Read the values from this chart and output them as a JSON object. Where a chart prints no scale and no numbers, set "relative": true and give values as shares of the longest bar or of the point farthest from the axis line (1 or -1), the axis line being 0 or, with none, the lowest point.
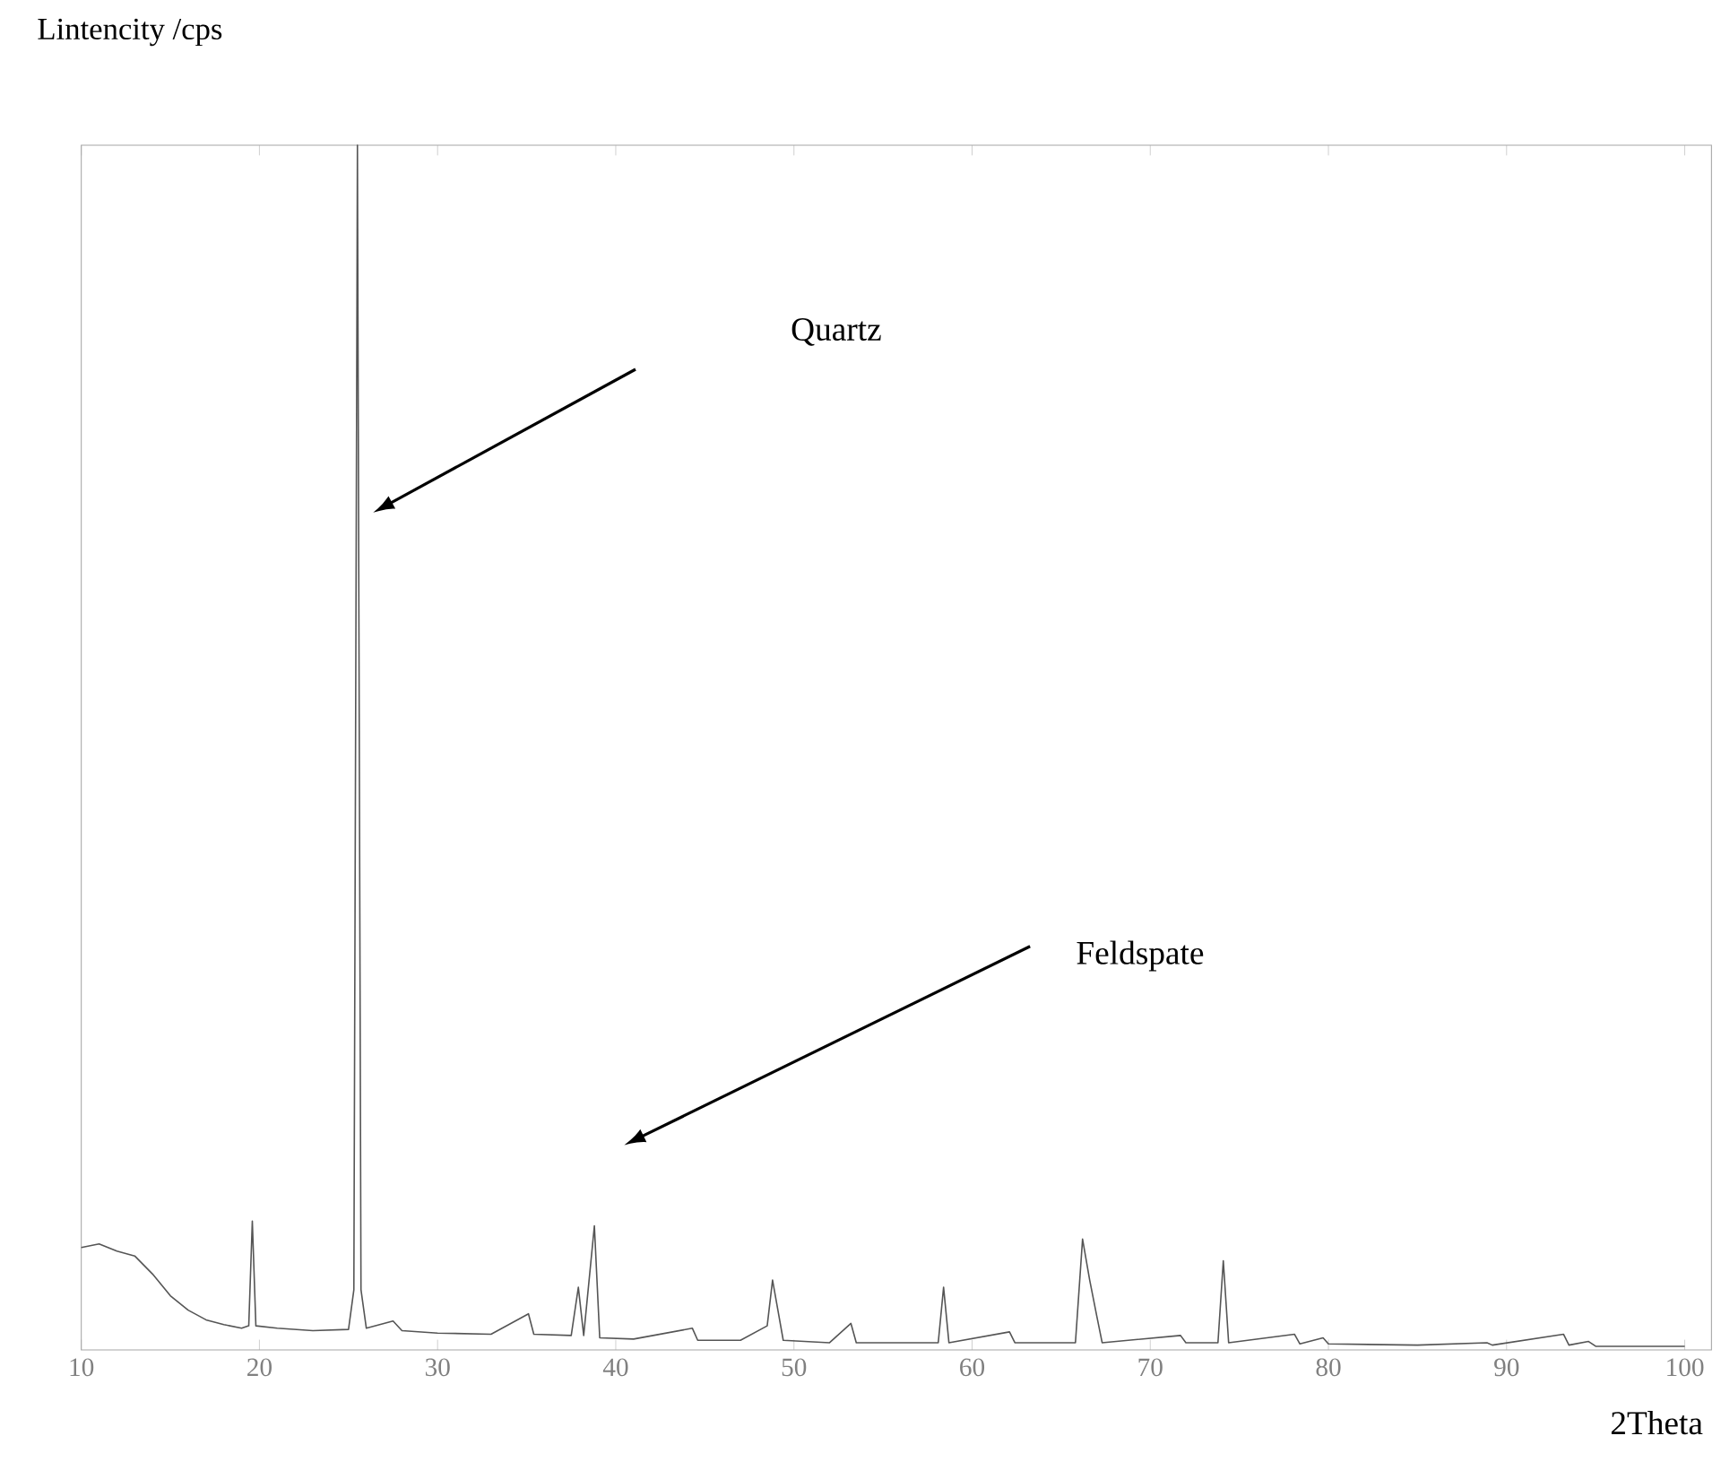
{
  "chart_data": {
    "type": "line",
    "xlabel": "2Theta",
    "ylabel": "Lintencity /cps",
    "relative": true,
    "tick_labels": "x",
    "marker": "none",
    "xlim": [
      10,
      101.5
    ],
    "xticks": [
      10,
      20,
      30,
      40,
      50,
      60,
      70,
      80,
      90,
      100
    ],
    "annotations": [
      "Quartz",
      "Feldspate"
    ],
    "x": [
      10,
      11,
      12,
      13,
      14,
      15,
      16,
      17,
      18,
      19,
      19.4,
      19.6,
      19.8,
      21,
      23,
      25,
      25.3,
      25.5,
      25.7,
      26,
      27.5,
      28,
      30,
      33,
      35.1,
      35.4,
      37.5,
      37.9,
      38.2,
      38.8,
      39.1,
      41,
      44.3,
      44.6,
      47,
      48.5,
      48.8,
      49.1,
      49.4,
      52,
      53.2,
      53.5,
      58.1,
      58.4,
      58.7,
      62.1,
      62.4,
      65.8,
      66.2,
      66.6,
      67,
      67.3,
      71.7,
      72,
      73.8,
      74.1,
      74.4,
      78.1,
      78.4,
      79.7,
      80,
      85,
      88.9,
      89.2,
      93.2,
      93.5,
      94.6,
      95,
      100
    ],
    "series": [
      {
        "color": "#555555",
        "values": [
          0.085,
          0.088,
          0.082,
          0.078,
          0.063,
          0.045,
          0.033,
          0.025,
          0.021,
          0.018,
          0.02,
          0.107,
          0.02,
          0.018,
          0.016,
          0.017,
          0.05,
          1.0,
          0.05,
          0.018,
          0.024,
          0.016,
          0.014,
          0.013,
          0.03,
          0.013,
          0.012,
          0.052,
          0.012,
          0.103,
          0.01,
          0.009,
          0.018,
          0.008,
          0.008,
          0.02,
          0.058,
          0.033,
          0.008,
          0.006,
          0.022,
          0.006,
          0.006,
          0.052,
          0.006,
          0.015,
          0.006,
          0.006,
          0.092,
          0.058,
          0.028,
          0.006,
          0.012,
          0.006,
          0.006,
          0.074,
          0.006,
          0.013,
          0.005,
          0.01,
          0.005,
          0.004,
          0.006,
          0.004,
          0.013,
          0.004,
          0.007,
          0.003,
          0.003
        ]
      }
    ]
  }
}
